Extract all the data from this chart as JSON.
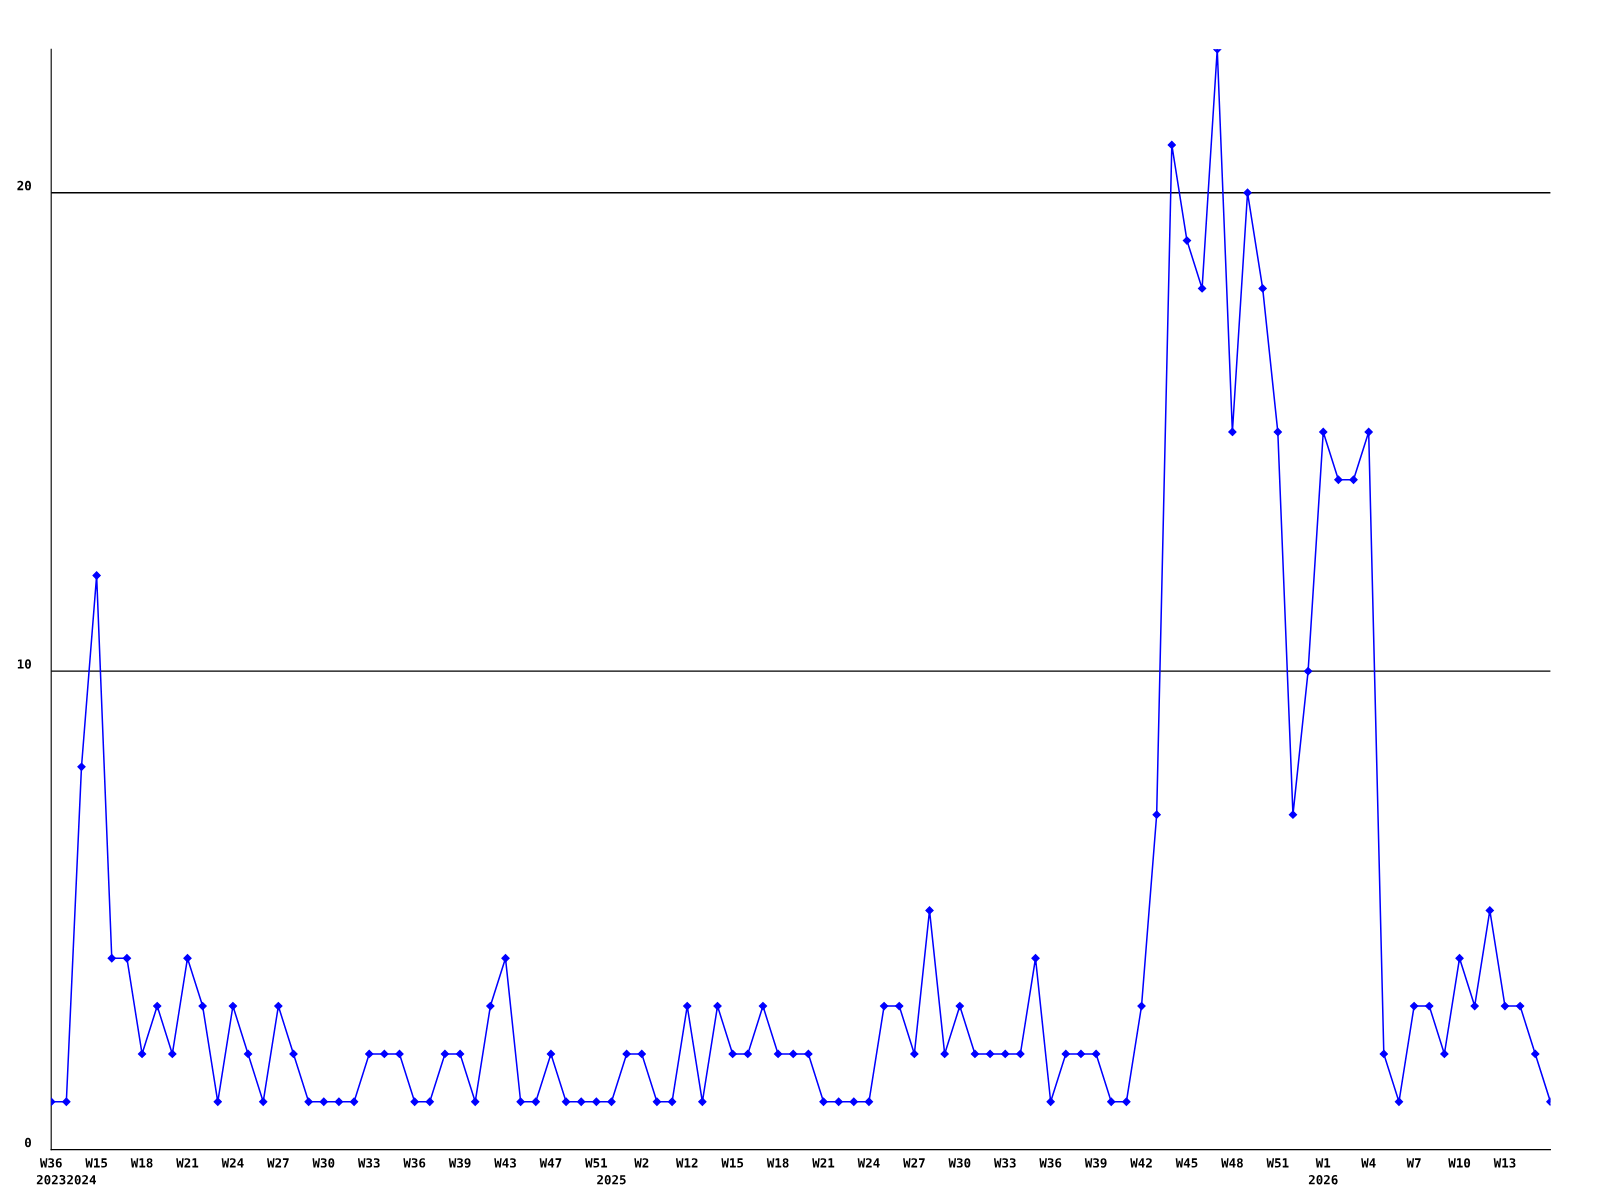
{
  "chart_data": {
    "type": "line",
    "categories": [
      "W36\n2023",
      null,
      "\n2024",
      "W15",
      null,
      null,
      "W18",
      null,
      null,
      "W21",
      null,
      null,
      "W24",
      null,
      null,
      "W27",
      null,
      null,
      "W30",
      null,
      null,
      "W33",
      null,
      null,
      "W36",
      null,
      null,
      "W39",
      null,
      null,
      "W43",
      null,
      null,
      "W47",
      null,
      null,
      "W51",
      "\n2025",
      null,
      "W2",
      null,
      null,
      "W12",
      null,
      null,
      "W15",
      null,
      null,
      "W18",
      null,
      null,
      "W21",
      null,
      null,
      "W24",
      null,
      null,
      "W27",
      null,
      null,
      "W30",
      null,
      null,
      "W33",
      null,
      null,
      "W36",
      null,
      null,
      "W39",
      null,
      null,
      "W42",
      null,
      null,
      "W45",
      null,
      null,
      "W48",
      null,
      null,
      "W51",
      null,
      null,
      "W1\n2026",
      null,
      null,
      "W4",
      null,
      null,
      "W7",
      null,
      null,
      "W10",
      null,
      null,
      "W13",
      null,
      null,
      null
    ],
    "series": [
      {
        "color": "#0000ff",
        "values": [
          1,
          1,
          8,
          12,
          4,
          4,
          2,
          3,
          2,
          4,
          3,
          1,
          3,
          2,
          1,
          3,
          2,
          1,
          1,
          1,
          1,
          2,
          2,
          2,
          1,
          1,
          2,
          2,
          1,
          3,
          4,
          1,
          1,
          2,
          1,
          1,
          1,
          1,
          2,
          2,
          1,
          1,
          3,
          1,
          3,
          2,
          2,
          3,
          2,
          2,
          2,
          1,
          1,
          1,
          1,
          3,
          3,
          2,
          5,
          2,
          3,
          2,
          2,
          2,
          2,
          4,
          1,
          2,
          2,
          2,
          1,
          1,
          3,
          7,
          21,
          19,
          18,
          23,
          15,
          20,
          18,
          15,
          7,
          10,
          15,
          14,
          14,
          15,
          2,
          1,
          3,
          3,
          2,
          4,
          3,
          5,
          3,
          3,
          2,
          1
        ]
      }
    ],
    "ylim": [
      0,
      23
    ],
    "yticks": [
      0,
      10,
      20
    ],
    "grid": "y",
    "marker": "diamond",
    "line_style": "solid",
    "legend": false
  }
}
